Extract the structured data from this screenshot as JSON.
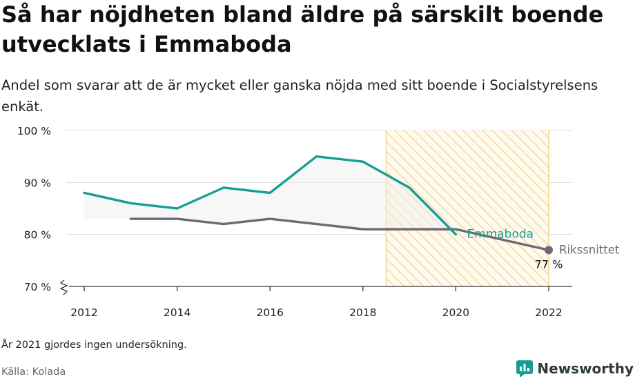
{
  "title": "Så har nöjdheten bland äldre på särskilt boende utvecklats i Emmaboda",
  "subtitle": "Andel som svarar att de är mycket eller ganska nöjda med sitt boende i Socialstyrelsens enkät.",
  "footnote": "År 2021 gjordes ingen undersökning.",
  "source": "Källa: Kolada",
  "brand": {
    "name": "Newsworthy",
    "icon": "newsworthy-logo-icon"
  },
  "colors": {
    "emmaboda": "#169e94",
    "riket": "#6d6a70",
    "highlight": "#f5d38a",
    "grid": "#dddddd",
    "axis": "#333333"
  },
  "chart_data": {
    "type": "line",
    "x_ticks": [
      "2012",
      "2014",
      "2016",
      "2018",
      "2020",
      "2022"
    ],
    "y_ticks": [
      "70 %",
      "80 %",
      "90 %",
      "100 %"
    ],
    "ylim": [
      70,
      100
    ],
    "xlim": [
      2011.6,
      2022.5
    ],
    "grid": true,
    "highlight_period": [
      2018.5,
      2022
    ],
    "series": [
      {
        "name": "Emmaboda",
        "key": "emmaboda",
        "x": [
          2012,
          2013,
          2014,
          2015,
          2016,
          2017,
          2018,
          2019,
          2020
        ],
        "values": [
          88,
          86,
          85,
          89,
          88,
          95,
          94,
          89,
          80
        ]
      },
      {
        "name": "Rikssnittet",
        "key": "riket",
        "x": [
          2013,
          2014,
          2015,
          2016,
          2017,
          2018,
          2019,
          2020,
          2022
        ],
        "values": [
          83,
          83,
          82,
          83,
          82,
          81,
          81,
          81,
          77
        ]
      }
    ],
    "end_value_label": "77 %"
  }
}
